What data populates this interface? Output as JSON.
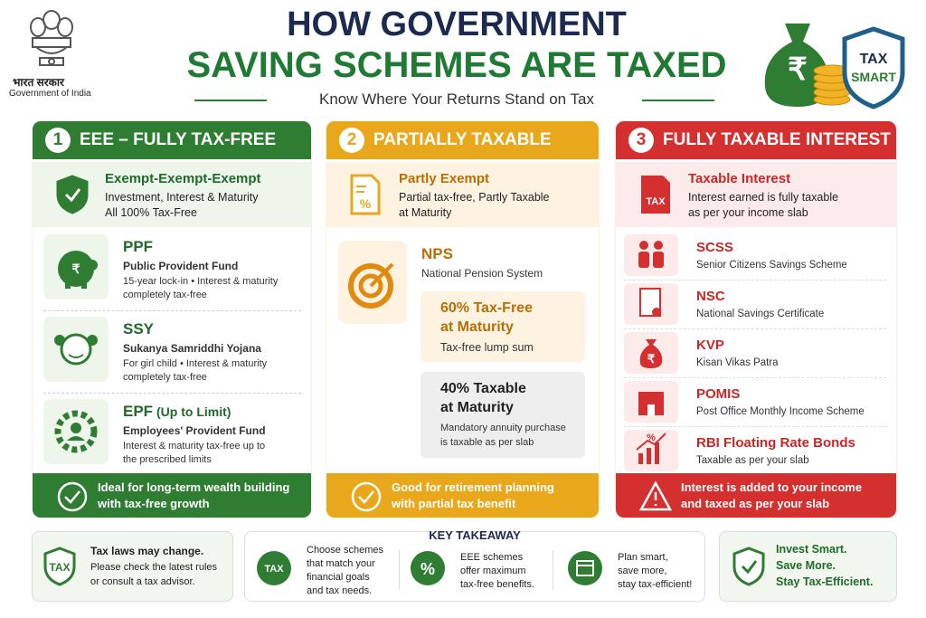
{
  "header": {
    "emblem_label_hindi": "भारत सरकार",
    "emblem_label": "Government of India",
    "title_line1": "HOW GOVERNMENT",
    "title_line2": "SAVING SCHEMES ARE TAXED",
    "subtitle": "Know Where Your Returns Stand on Tax",
    "bag_symbol": "₹",
    "badge_line1": "TAX",
    "badge_line2": "SMART"
  },
  "columns": [
    {
      "number": "1",
      "title": "EEE – FULLY TAX-FREE",
      "summary": {
        "title": "Exempt-Exempt-Exempt",
        "lines": [
          "Investment, Interest & Maturity",
          "All 100% Tax-Free"
        ]
      },
      "items": [
        {
          "name": "PPF",
          "full_name": "Public Provident Fund",
          "notes": [
            "15-year lock-in • Interest & maturity",
            "completely tax-free"
          ],
          "icon_text": "₹"
        },
        {
          "name": "SSY",
          "full_name": "Sukanya Samriddhi Yojana",
          "notes": [
            "For girl child • Interest & maturity",
            "completely tax-free"
          ]
        },
        {
          "name": "EPF",
          "name_note": "(Up to Limit)",
          "full_name": "Employees' Provident Fund",
          "notes": [
            "Interest & maturity tax-free up to",
            "the prescribed limits"
          ]
        }
      ],
      "footer": [
        "Ideal for long-term wealth building",
        "with tax-free growth"
      ]
    },
    {
      "number": "2",
      "title": "PARTIALLY TAXABLE",
      "summary": {
        "title": "Partly Exempt",
        "lines": [
          "Partial tax-free, Partly Taxable",
          "at Maturity"
        ],
        "icon_text": "%"
      },
      "scheme": {
        "name": "NPS",
        "full_name": "National Pension System",
        "parts": [
          {
            "title_lines": [
              "60% Tax-Free",
              "at Maturity"
            ],
            "note_lines": [
              "Tax-free lump sum"
            ]
          },
          {
            "title_lines": [
              "40% Taxable",
              "at Maturity"
            ],
            "note_lines": [
              "Mandatory annuity purchase",
              "is taxable as per slab"
            ]
          }
        ]
      },
      "footer": [
        "Good for retirement planning",
        "with partial tax benefit"
      ]
    },
    {
      "number": "3",
      "title": "FULLY TAXABLE INTEREST",
      "summary": {
        "title": "Taxable Interest",
        "lines": [
          "Interest earned is fully taxable",
          "as per your income slab"
        ],
        "icon_text": "TAX"
      },
      "items": [
        {
          "name": "SCSS",
          "full_name": "Senior Citizens Savings Scheme"
        },
        {
          "name": "NSC",
          "full_name": "National Savings Certificate"
        },
        {
          "name": "KVP",
          "full_name": "Kisan Vikas Patra",
          "icon_text": "₹"
        },
        {
          "name": "POMIS",
          "full_name": "Post Office Monthly Income Scheme"
        },
        {
          "name": "RBI Floating Rate Bonds",
          "full_name": "Taxable as per your slab",
          "icon_text": "%"
        }
      ],
      "footer": [
        "Interest is added to your income",
        "and taxed as per your slab"
      ]
    }
  ],
  "bottom": {
    "left": {
      "icon_text": "TAX",
      "title": "Tax laws may change.",
      "lines": [
        "Please check the latest rules",
        "or consult a tax advisor."
      ]
    },
    "key_takeaway": {
      "title": "KEY TAKEAWAY",
      "points": [
        {
          "icon_text": "TAX",
          "lines": [
            "Choose schemes",
            "that match your",
            "financial goals",
            "and tax needs."
          ]
        },
        {
          "icon_text": "%",
          "lines": [
            "EEE schemes",
            "offer maximum",
            "tax-free benefits."
          ]
        },
        {
          "lines": [
            "Plan smart,",
            "save more,",
            "stay tax-efficient!"
          ]
        }
      ]
    },
    "right": {
      "lines": [
        "Invest Smart.",
        "Save More.",
        "Stay Tax-Efficient."
      ]
    }
  }
}
